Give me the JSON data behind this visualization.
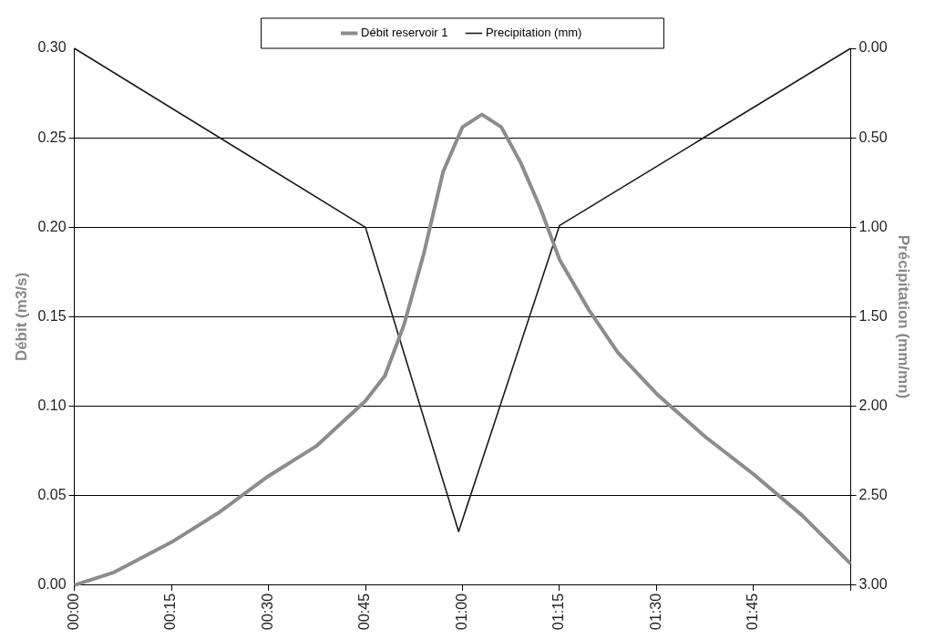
{
  "chart_data": {
    "type": "line",
    "ylabel": "Débit (m3/s)",
    "y2label": "Précipitation (mm/mn)",
    "xlim": [
      0,
      2
    ],
    "xticks": [
      {
        "value": 0,
        "label": "00:00"
      },
      {
        "value": 0.25,
        "label": "00:15"
      },
      {
        "value": 0.5,
        "label": "00:30"
      },
      {
        "value": 0.75,
        "label": "00:45"
      },
      {
        "value": 1,
        "label": "01:00"
      },
      {
        "value": 1.25,
        "label": "01:15"
      },
      {
        "value": 1.5,
        "label": "01:30"
      },
      {
        "value": 1.75,
        "label": "01:45"
      },
      {
        "value": 2,
        "label": null
      }
    ],
    "ylim": [
      0,
      0.3
    ],
    "yticks": [
      {
        "value": 0,
        "label": "0.00"
      },
      {
        "value": 0.05,
        "label": "0.05"
      },
      {
        "value": 0.1,
        "label": "0.10"
      },
      {
        "value": 0.15,
        "label": "0.15"
      },
      {
        "value": 0.2,
        "label": "0.20"
      },
      {
        "value": 0.25,
        "label": "0.25"
      },
      {
        "value": 0.3,
        "label": "0.30"
      }
    ],
    "y2lim": [
      3,
      0
    ],
    "y2ticks": [
      {
        "value": 3,
        "label": "3.00"
      },
      {
        "value": 2.5,
        "label": "2.50"
      },
      {
        "value": 2,
        "label": "2.00"
      },
      {
        "value": 1.5,
        "label": "1.50"
      },
      {
        "value": 1,
        "label": "1.00"
      },
      {
        "value": 0.5,
        "label": "0.50"
      },
      {
        "value": 0,
        "label": "0.00"
      }
    ],
    "grid": "y",
    "legend": "top",
    "marker": "none",
    "line_style": "solid",
    "series": [
      {
        "name": "Débit reservoir 1",
        "color": "#8c8c8c",
        "x": [
          0,
          0.1,
          0.25,
          0.375,
          0.5,
          0.625,
          0.75,
          0.8,
          0.85,
          0.9,
          0.95,
          1,
          1.05,
          1.1,
          1.15,
          1.2,
          1.25,
          1.325,
          1.4,
          1.5,
          1.625,
          1.75,
          1.875,
          2
        ],
        "values": [
          0,
          0.007,
          0.024,
          0.041,
          0.061,
          0.078,
          0.103,
          0.117,
          0.146,
          0.185,
          0.231,
          0.256,
          0.263,
          0.256,
          0.236,
          0.211,
          0.182,
          0.154,
          0.13,
          0.107,
          0.083,
          0.062,
          0.039,
          0.012
        ]
      },
      {
        "name": "Precipitation (mm)",
        "color": "#1a1a1a",
        "axis": "y2",
        "x": [
          0,
          0.75,
          0.99,
          1.25,
          2
        ],
        "values": [
          0,
          1,
          2.7,
          0.99,
          0
        ]
      }
    ]
  }
}
